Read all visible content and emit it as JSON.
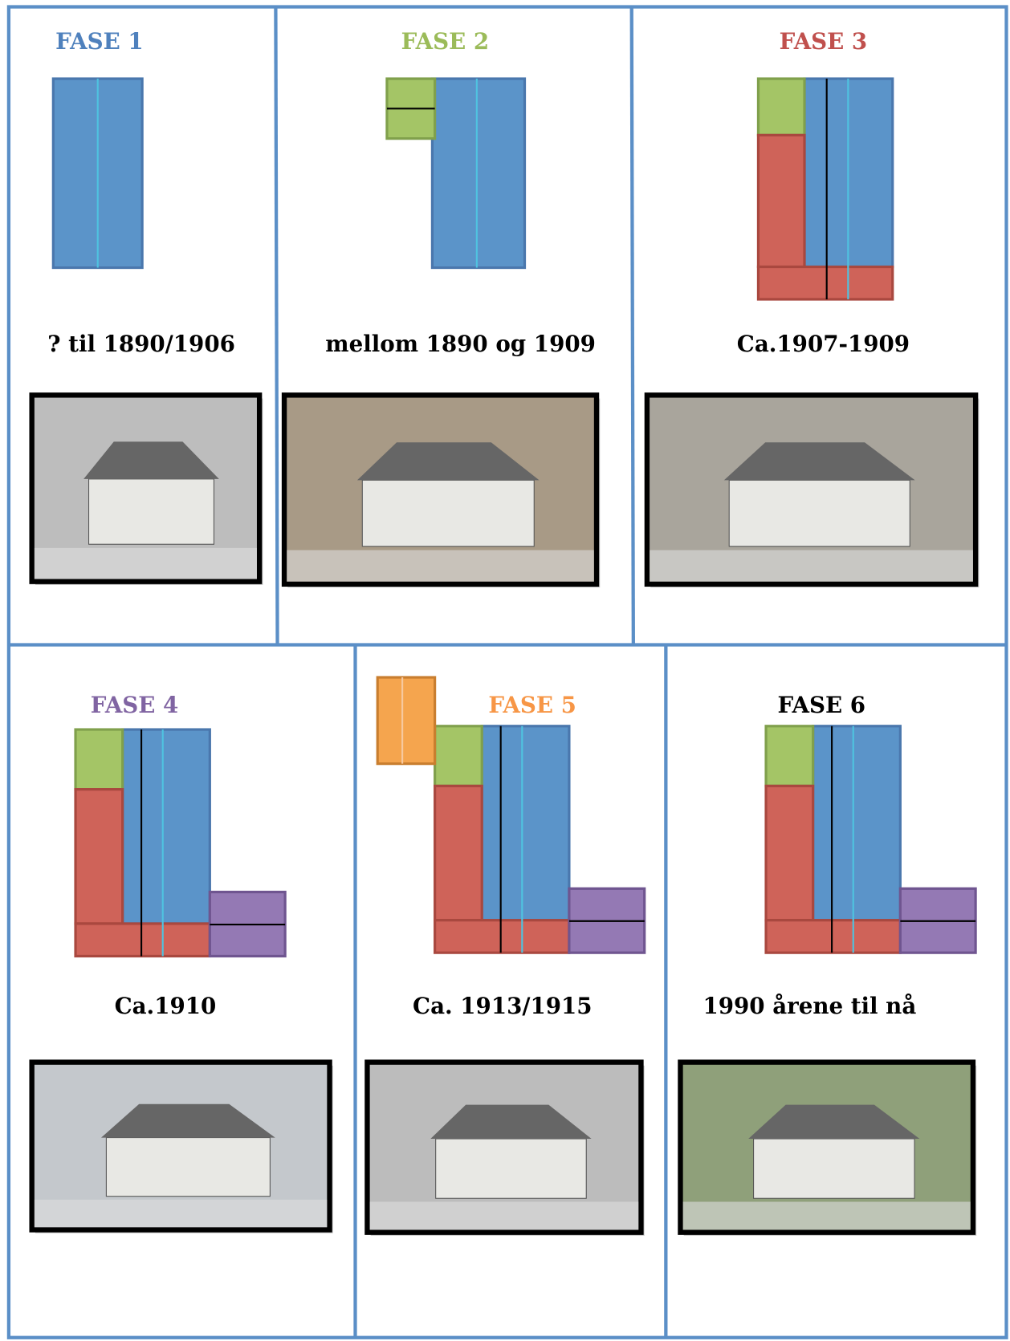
{
  "phases": [
    {
      "title": "FASE  1",
      "color": "#4f81bd",
      "period": "?  til 1890/1906"
    },
    {
      "title": "FASE  2",
      "color": "#9bbb59",
      "period": "mellom 1890 og 1909"
    },
    {
      "title": "FASE  3",
      "color": "#c0504d",
      "period": "Ca.1907-1909"
    },
    {
      "title": "FASE  4",
      "color": "#8064a2",
      "period": "Ca.1910"
    },
    {
      "title": "FASE  5",
      "color": "#f79646",
      "period": "Ca. 1913/1915"
    },
    {
      "title": "FASE 6",
      "color": "#000000",
      "period": "1990 årene til nå"
    }
  ]
}
